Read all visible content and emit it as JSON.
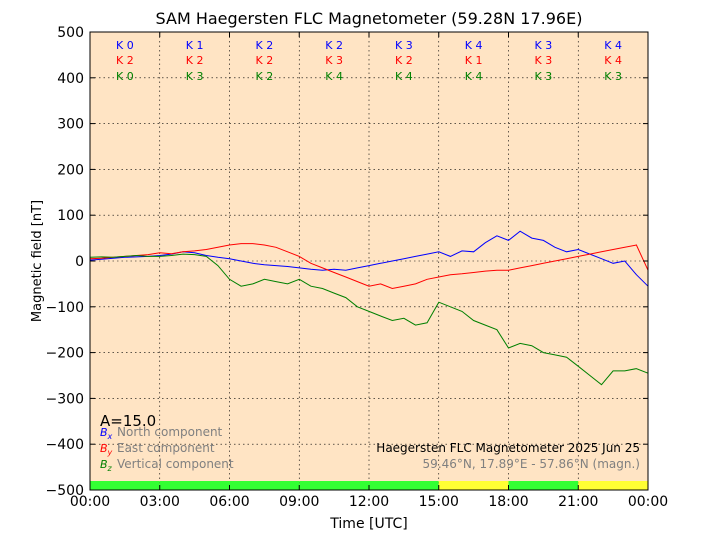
{
  "chart_data": {
    "type": "line",
    "title": "SAM Haegersten FLC Magnetometer (59.28N 17.96E)",
    "xlabel": "Time [UTC]",
    "ylabel": "Magnetic field [nT]",
    "xlim": [
      0,
      24
    ],
    "ylim": [
      -500,
      500
    ],
    "x_ticks": [
      "00:00",
      "03:00",
      "06:00",
      "09:00",
      "12:00",
      "15:00",
      "18:00",
      "21:00",
      "00:00"
    ],
    "y_ticks": [
      "500",
      "400",
      "300",
      "200",
      "100",
      "0",
      "−100",
      "−200",
      "−300",
      "−400",
      "−500"
    ],
    "grid": true,
    "colors": {
      "bx": "#0000ff",
      "by": "#ff0000",
      "bz": "#008000",
      "background": "#ffe4c4",
      "quiet": "#33ff33",
      "active": "#ffff33"
    },
    "k_indices": [
      {
        "x": "K 0",
        "y": "K 2",
        "z": "K 0"
      },
      {
        "x": "K 1",
        "y": "K 2",
        "z": "K 3"
      },
      {
        "x": "K 2",
        "y": "K 2",
        "z": "K 2"
      },
      {
        "x": "K 2",
        "y": "K 3",
        "z": "K 4"
      },
      {
        "x": "K 3",
        "y": "K 2",
        "z": "K 4"
      },
      {
        "x": "K 4",
        "y": "K 1",
        "z": "K 4"
      },
      {
        "x": "K 3",
        "y": "K 3",
        "z": "K 3"
      },
      {
        "x": "K 4",
        "y": "K 4",
        "z": "K 3"
      }
    ],
    "a_index": "A=15.0",
    "legend": {
      "bx_label": "North component",
      "by_label": "East component",
      "bz_label": "Vertical component",
      "bx_symbol": "B",
      "bx_sub": "x",
      "by_symbol": "B",
      "by_sub": "y",
      "bz_symbol": "B",
      "bz_sub": "z"
    },
    "station_label": "Haegersten FLC Magnetometer 2025 Jun 25",
    "coords_label": "59.46°N, 17.89°E - 57.86°N (magn.)",
    "activity_bar": [
      "quiet",
      "quiet",
      "quiet",
      "quiet",
      "quiet",
      "active",
      "quiet",
      "active"
    ],
    "series": [
      {
        "key": "bx",
        "x": [
          0,
          0.5,
          1,
          1.5,
          2,
          2.5,
          3,
          3.5,
          4,
          4.5,
          5,
          5.5,
          6,
          6.5,
          7,
          7.5,
          8,
          8.5,
          9,
          9.5,
          10,
          10.5,
          11,
          11.5,
          12,
          12.5,
          13,
          13.5,
          14,
          14.5,
          15,
          15.5,
          16,
          16.5,
          17,
          17.5,
          18,
          18.5,
          19,
          19.5,
          20,
          20.5,
          21,
          21.5,
          22,
          22.5,
          23,
          23.5,
          24
        ],
        "values": [
          2,
          4,
          6,
          8,
          9,
          10,
          12,
          15,
          20,
          18,
          12,
          8,
          5,
          0,
          -5,
          -8,
          -10,
          -12,
          -15,
          -18,
          -20,
          -18,
          -20,
          -15,
          -10,
          -5,
          0,
          5,
          10,
          15,
          20,
          10,
          22,
          20,
          40,
          55,
          45,
          65,
          50,
          45,
          30,
          20,
          25,
          15,
          5,
          -5,
          0,
          -30,
          -55
        ]
      },
      {
        "key": "by",
        "x": [
          0,
          0.5,
          1,
          1.5,
          2,
          2.5,
          3,
          3.5,
          4,
          4.5,
          5,
          5.5,
          6,
          6.5,
          7,
          7.5,
          8,
          8.5,
          9,
          9.5,
          10,
          10.5,
          11,
          11.5,
          12,
          12.5,
          13,
          13.5,
          14,
          14.5,
          15,
          15.5,
          16,
          16.5,
          17,
          17.5,
          18,
          18.5,
          19,
          19.5,
          20,
          20.5,
          21,
          21.5,
          22,
          22.5,
          23,
          23.5,
          24
        ],
        "values": [
          5,
          6,
          8,
          10,
          12,
          14,
          18,
          16,
          20,
          22,
          25,
          30,
          35,
          38,
          38,
          35,
          30,
          20,
          10,
          -5,
          -15,
          -25,
          -35,
          -45,
          -55,
          -50,
          -60,
          -55,
          -50,
          -40,
          -35,
          -30,
          -28,
          -25,
          -22,
          -20,
          -20,
          -15,
          -10,
          -5,
          0,
          5,
          10,
          15,
          20,
          25,
          30,
          35,
          -20
        ]
      },
      {
        "key": "bz",
        "x": [
          0,
          0.5,
          1,
          1.5,
          2,
          2.5,
          3,
          3.5,
          4,
          4.5,
          5,
          5.5,
          6,
          6.5,
          7,
          7.5,
          8,
          8.5,
          9,
          9.5,
          10,
          10.5,
          11,
          11.5,
          12,
          12.5,
          13,
          13.5,
          14,
          14.5,
          15,
          15.5,
          16,
          16.5,
          17,
          17.5,
          18,
          18.5,
          19,
          19.5,
          20,
          20.5,
          21,
          21.5,
          22,
          22.5,
          23,
          23.5,
          24
        ],
        "values": [
          8,
          9,
          8,
          10,
          12,
          10,
          10,
          12,
          15,
          14,
          10,
          -10,
          -40,
          -55,
          -50,
          -40,
          -45,
          -50,
          -40,
          -55,
          -60,
          -70,
          -80,
          -100,
          -110,
          -120,
          -130,
          -125,
          -140,
          -135,
          -90,
          -100,
          -110,
          -130,
          -140,
          -150,
          -190,
          -180,
          -185,
          -200,
          -205,
          -210,
          -230,
          -250,
          -270,
          -240,
          -240,
          -235,
          -245
        ]
      }
    ]
  }
}
